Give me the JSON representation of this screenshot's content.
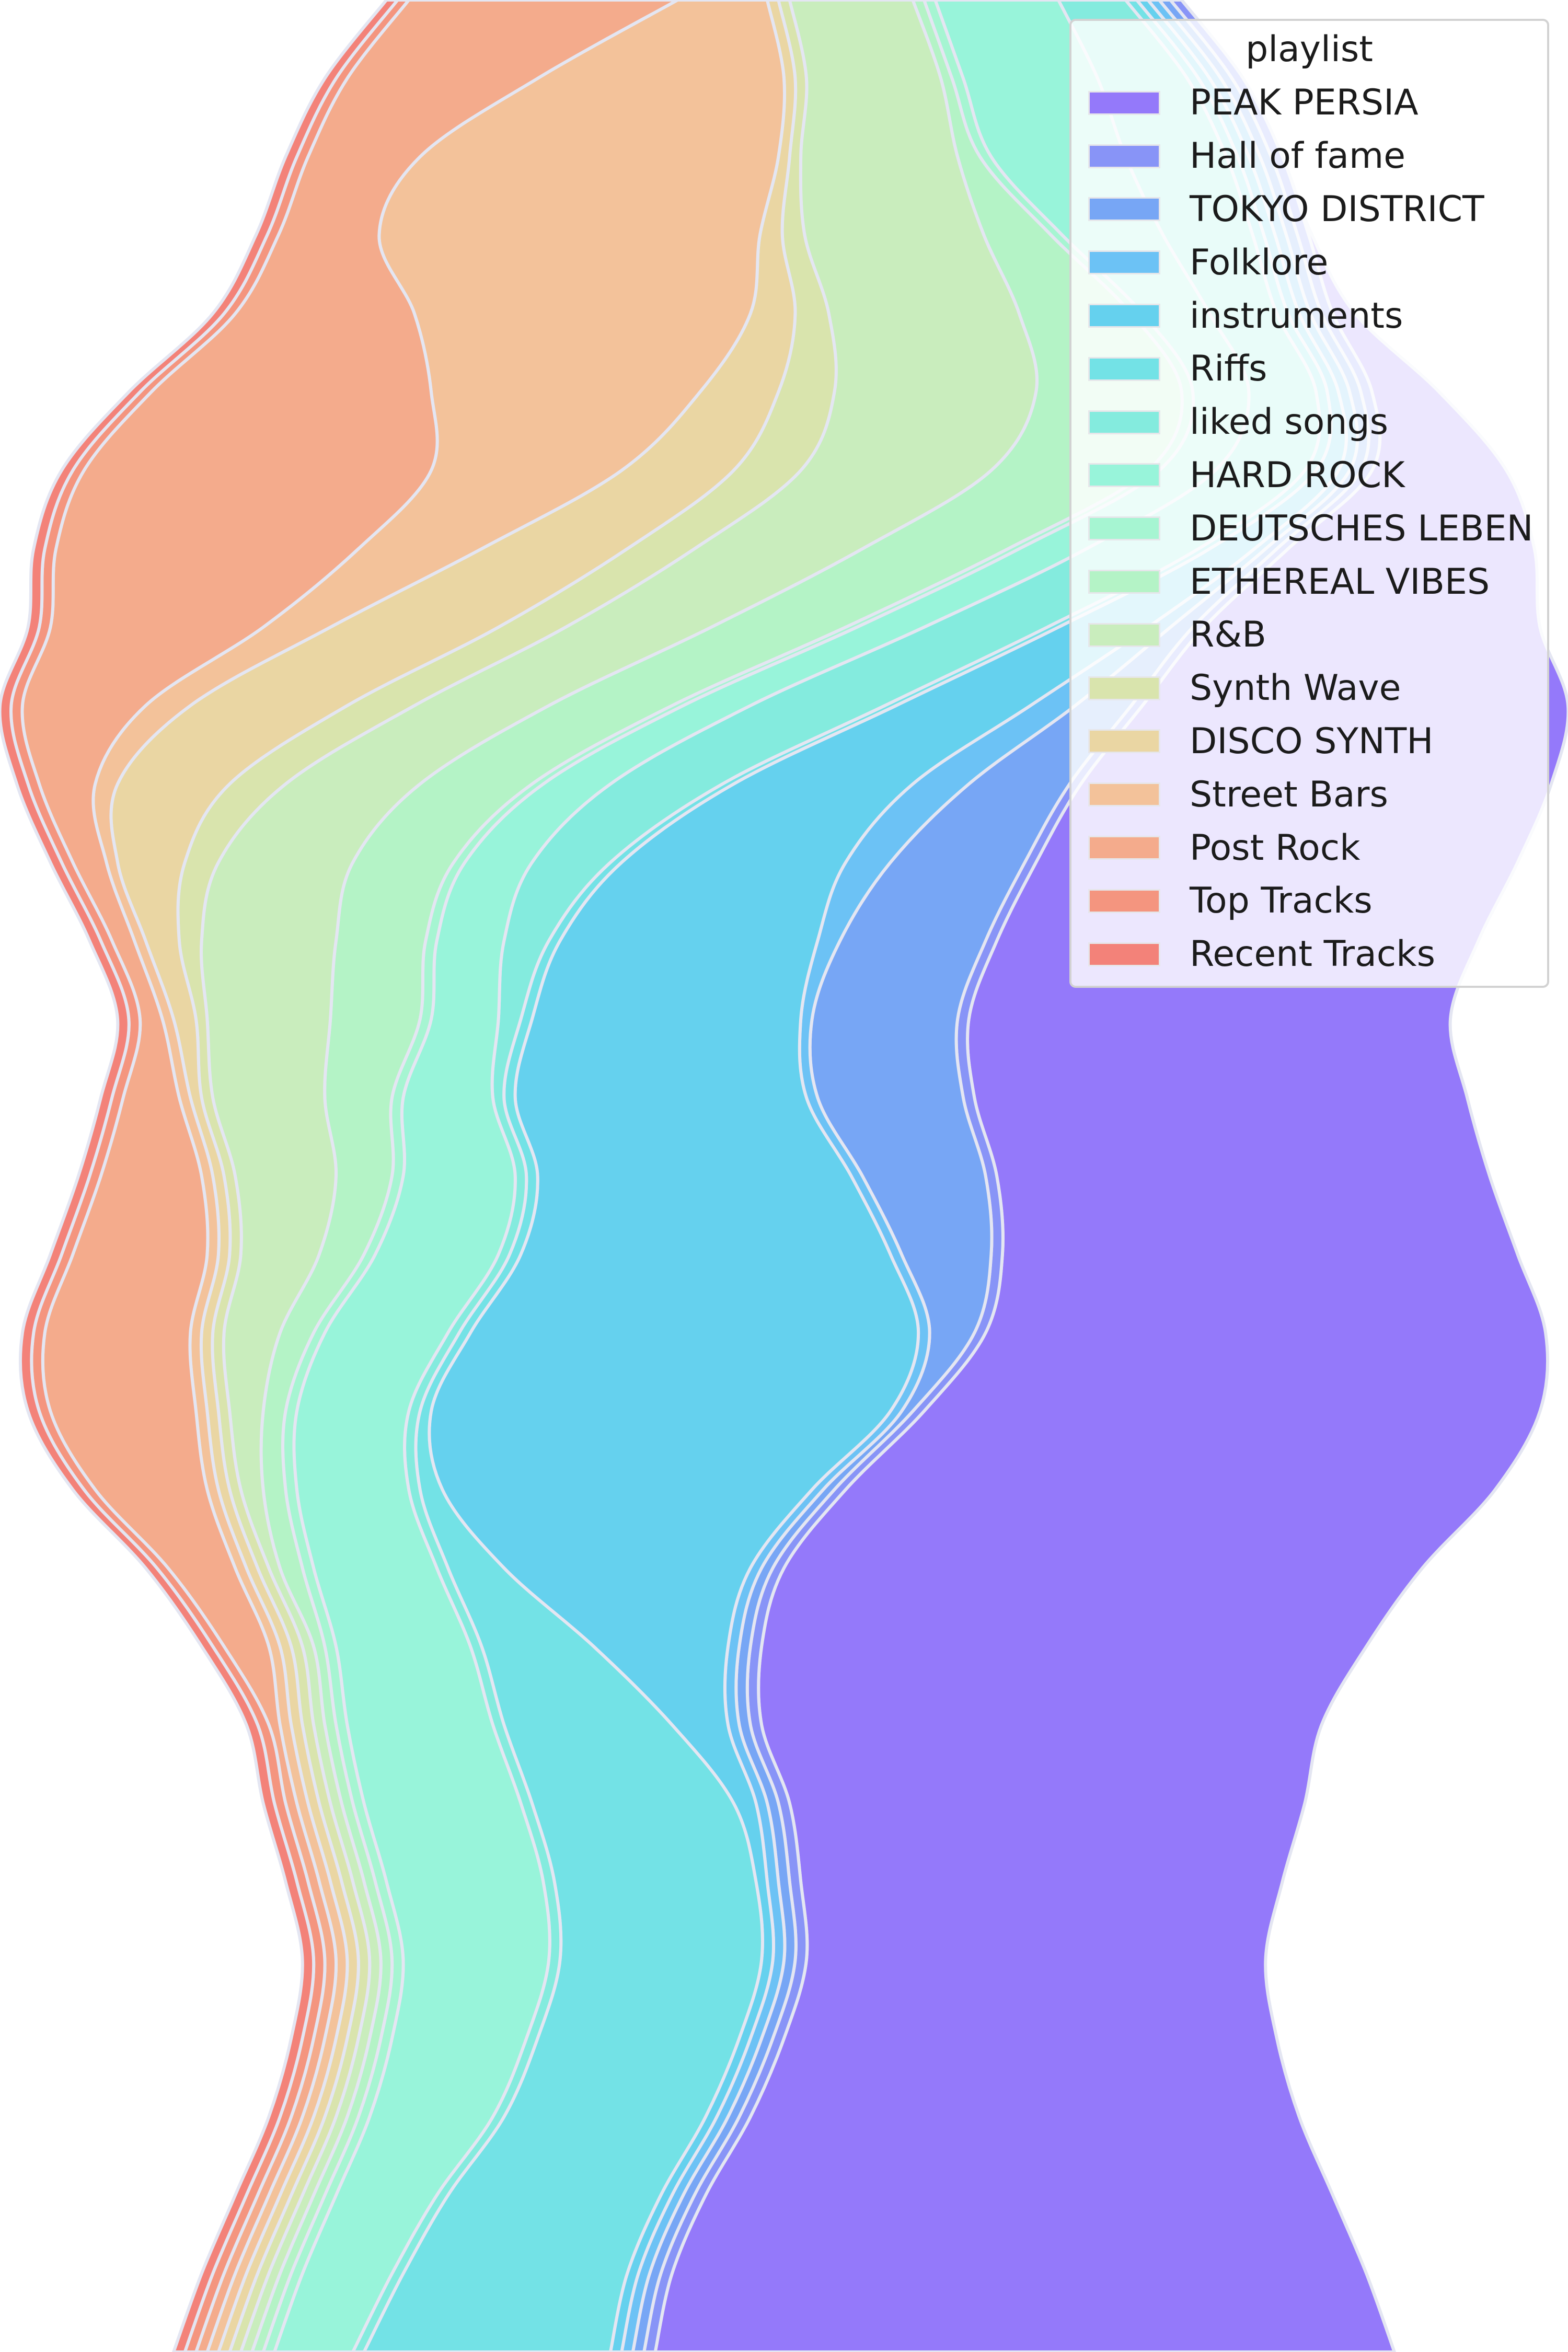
{
  "chart_data": {
    "type": "area",
    "orientation": "vertical",
    "stacking": "wiggle",
    "legend": {
      "title": "playlist",
      "placement": "top-right"
    },
    "xlabel": "",
    "ylabel": "",
    "grid": false,
    "series": [
      {
        "name": "PEAK PERSIA",
        "color": "#9479fa",
        "values": [
          0,
          0,
          0,
          0.3,
          2,
          6,
          12,
          22,
          30,
          38,
          42,
          43,
          43,
          43,
          44,
          44,
          46,
          50,
          55,
          58,
          57,
          54,
          50,
          46,
          43,
          41,
          44,
          49,
          56,
          62,
          66
        ]
      },
      {
        "name": "Hall of fame",
        "color": "#8894f7",
        "values": [
          1,
          1,
          1,
          1,
          1,
          1,
          1,
          1,
          1,
          1,
          1,
          1,
          1,
          1,
          1,
          1,
          1,
          1,
          1,
          1,
          1,
          1,
          1,
          1,
          1,
          1,
          1,
          1,
          1,
          1,
          1
        ]
      },
      {
        "name": "TOKYO DISTRICT",
        "color": "#77a6f5",
        "values": [
          1,
          1,
          1,
          1,
          1,
          1,
          1,
          1,
          2,
          5,
          9,
          12,
          13,
          13,
          13,
          11,
          8,
          4,
          1,
          1,
          1,
          1,
          1,
          1,
          1,
          1,
          1,
          1,
          1,
          1,
          1
        ]
      },
      {
        "name": "Folklore",
        "color": "#6cc2f5",
        "values": [
          1,
          1,
          1,
          1,
          1,
          1,
          1,
          1,
          2,
          4,
          5,
          4,
          2,
          1,
          1,
          1,
          1,
          1,
          1,
          1,
          1,
          1,
          1,
          1,
          1,
          1,
          1,
          1,
          1,
          1,
          1
        ]
      },
      {
        "name": "instruments",
        "color": "#65d1ee",
        "values": [
          1,
          1,
          1,
          1,
          1,
          1,
          2,
          4,
          8,
          12,
          16,
          20,
          23,
          24,
          26,
          28,
          33,
          40,
          41,
          33,
          22,
          12,
          5,
          2,
          1,
          1,
          1,
          1,
          1,
          1,
          1
        ]
      },
      {
        "name": "Riffs",
        "color": "#73e2e6",
        "values": [
          1,
          1,
          1,
          1,
          1,
          1,
          1,
          1,
          1,
          1,
          1,
          1,
          1,
          1,
          1,
          1,
          1,
          1,
          1,
          2,
          5,
          10,
          15,
          18,
          18,
          18,
          18,
          18,
          19,
          20,
          22
        ]
      },
      {
        "name": "liked songs",
        "color": "#84ebde",
        "values": [
          6,
          8,
          9,
          8,
          6,
          6,
          8,
          10,
          11,
          12,
          10,
          7,
          4,
          2,
          1,
          1,
          1,
          1,
          1,
          1,
          1,
          1,
          1,
          1,
          1,
          1,
          1,
          1,
          1,
          1,
          1
        ]
      },
      {
        "name": "HARD ROCK",
        "color": "#98f4da",
        "values": [
          11,
          12,
          12,
          9,
          6,
          5,
          5,
          6,
          6,
          6,
          6,
          6,
          6,
          6,
          8,
          10,
          11,
          11,
          10,
          10,
          11,
          12,
          13,
          14,
          14,
          13,
          12,
          11,
          9,
          8,
          7
        ]
      },
      {
        "name": "DEUTSCHES LEBEN",
        "color": "#a6f5d2",
        "values": [
          1,
          1,
          1,
          1,
          1,
          1,
          1,
          1,
          1,
          1,
          1,
          1,
          1,
          1,
          1,
          1,
          1,
          1,
          1,
          1,
          1,
          1,
          1,
          1,
          1,
          1,
          1,
          1,
          1,
          1,
          1
        ]
      },
      {
        "name": "ETHEREAL VIBES",
        "color": "#b4f3c6",
        "values": [
          1,
          1,
          2,
          6,
          10,
          13,
          14,
          13,
          12,
          11,
          10,
          9,
          8,
          8,
          6,
          5,
          4,
          3,
          2,
          2,
          2,
          1,
          1,
          1,
          1,
          1,
          1,
          1,
          1,
          1,
          1
        ]
      },
      {
        "name": "R&B",
        "color": "#c9edbd",
        "values": [
          11,
          12,
          14,
          16,
          17,
          18,
          17,
          15,
          13,
          12,
          12,
          12,
          12,
          11,
          10,
          9,
          7,
          5,
          3,
          2,
          1,
          1,
          1,
          1,
          1,
          1,
          1,
          1,
          1,
          1,
          1
        ]
      },
      {
        "name": "Synth Wave",
        "color": "#d9e4ad",
        "values": [
          1,
          1,
          1,
          2,
          3,
          5,
          6,
          6,
          6,
          6,
          5,
          3,
          2,
          1,
          1,
          1,
          1,
          1,
          1,
          1,
          1,
          1,
          1,
          1,
          1,
          1,
          1,
          1,
          1,
          1,
          1
        ]
      },
      {
        "name": "DISCO SYNTH",
        "color": "#ead6a3",
        "values": [
          1,
          1,
          1,
          2,
          4,
          7,
          10,
          13,
          15,
          14,
          10,
          6,
          3,
          2,
          1,
          1,
          1,
          1,
          1,
          1,
          1,
          1,
          1,
          1,
          1,
          1,
          1,
          1,
          1,
          1,
          1
        ]
      },
      {
        "name": "Street Bars",
        "color": "#f3c29a",
        "values": [
          8,
          22,
          32,
          34,
          30,
          24,
          17,
          11,
          6,
          4,
          2,
          1,
          1,
          1,
          1,
          1,
          1,
          1,
          1,
          1,
          1,
          1,
          1,
          1,
          1,
          1,
          1,
          1,
          1,
          1,
          1
        ]
      },
      {
        "name": "Post Rock",
        "color": "#f4ab8c",
        "values": [
          24,
          17,
          10,
          9,
          16,
          25,
          31,
          27,
          19,
          11,
          5,
          3,
          2,
          2,
          5,
          9,
          12,
          13,
          13,
          10,
          6,
          4,
          1,
          1,
          1,
          1,
          1,
          1,
          1,
          1,
          1
        ]
      },
      {
        "name": "Top Tracks",
        "color": "#f4957f",
        "values": [
          1,
          1,
          1,
          1,
          1,
          1,
          1,
          1,
          1,
          1,
          1,
          1,
          1,
          1,
          1,
          1,
          1,
          1,
          1,
          1,
          1,
          1,
          1,
          1,
          1,
          1,
          1,
          1,
          1,
          1,
          1
        ]
      },
      {
        "name": "Recent Tracks",
        "color": "#f38279",
        "values": [
          1,
          1,
          1,
          1,
          1,
          1,
          1,
          1,
          1,
          1,
          1,
          1,
          1,
          1,
          1,
          1,
          1,
          1,
          1,
          1,
          1,
          1,
          1,
          1,
          1,
          1,
          1,
          1,
          1,
          1,
          1
        ]
      }
    ]
  }
}
